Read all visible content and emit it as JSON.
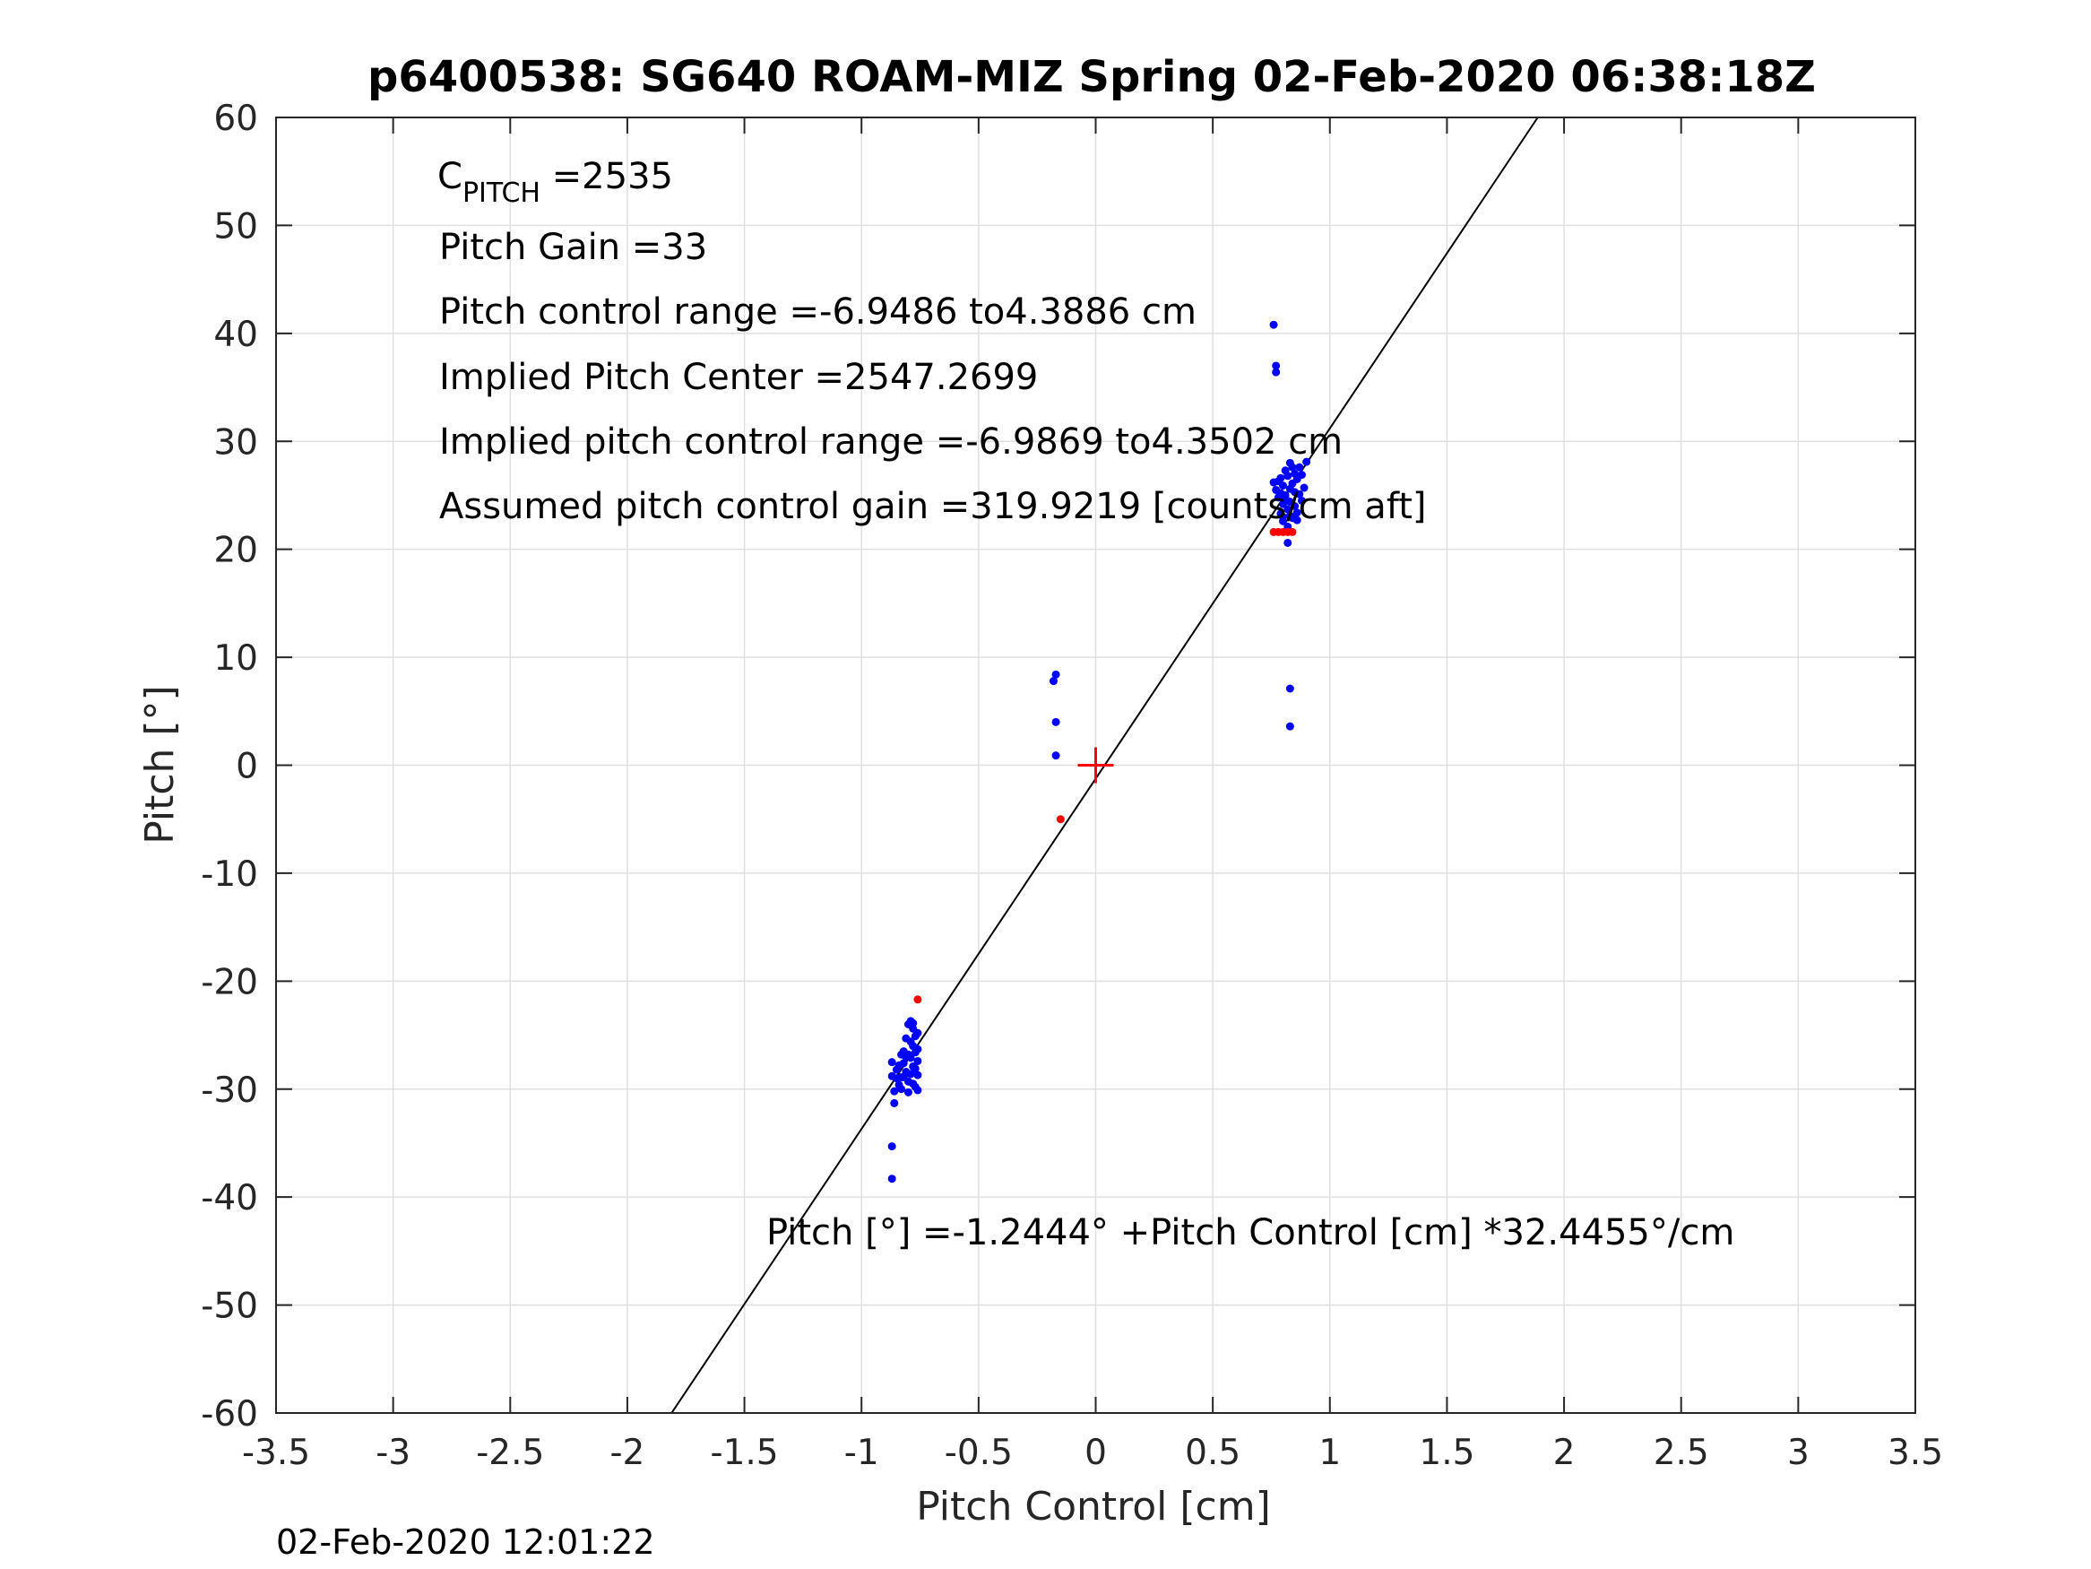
{
  "chart_data": {
    "type": "scatter",
    "title": "p6400538: SG640 ROAM-MIZ Spring 02-Feb-2020 06:38:18Z",
    "xlabel": "Pitch Control [cm]",
    "ylabel": "Pitch [°]",
    "xlim": [
      -3.5,
      3.5
    ],
    "ylim": [
      -60,
      60
    ],
    "xticks": [
      "-3.5",
      "-3",
      "-2.5",
      "-2",
      "-1.5",
      "-1",
      "-0.5",
      "0",
      "0.5",
      "1",
      "1.5",
      "2",
      "2.5",
      "3",
      "3.5"
    ],
    "yticks": [
      "-60",
      "-50",
      "-40",
      "-30",
      "-20",
      "-10",
      "0",
      "10",
      "20",
      "30",
      "40",
      "50",
      "60"
    ],
    "grid": true,
    "fit_line": {
      "intercept": -1.2444,
      "slope": 32.4455
    },
    "center_marker": {
      "x": 0,
      "y": 0
    },
    "annotations": {
      "c_pitch_main": "C",
      "c_pitch_sub": "PITCH",
      "c_pitch_value": " =2535",
      "pitch_gain": "Pitch Gain =33",
      "pitch_control_range": "Pitch control range =-6.9486 to4.3886 cm",
      "implied_center": "Implied Pitch Center =2547.2699",
      "implied_range": "Implied pitch control range =-6.9869 to4.3502 cm",
      "assumed_gain": "Assumed pitch control gain =319.9219 [counts/cm aft]",
      "fit_equation": "Pitch [°] =-1.2444° +Pitch Control [cm] *32.4455°/cm"
    },
    "series": [
      {
        "color": "#0000ff",
        "points": [
          [
            0.76,
            40.8
          ],
          [
            0.77,
            37.0
          ],
          [
            0.77,
            36.4
          ],
          [
            0.76,
            26.2
          ],
          [
            0.77,
            25.5
          ],
          [
            0.78,
            24.8
          ],
          [
            0.79,
            26.6
          ],
          [
            0.8,
            25.9
          ],
          [
            0.8,
            24.2
          ],
          [
            0.81,
            27.3
          ],
          [
            0.81,
            25.0
          ],
          [
            0.82,
            26.8
          ],
          [
            0.82,
            23.7
          ],
          [
            0.83,
            25.6
          ],
          [
            0.83,
            24.4
          ],
          [
            0.84,
            26.1
          ],
          [
            0.84,
            22.9
          ],
          [
            0.85,
            25.3
          ],
          [
            0.85,
            24.0
          ],
          [
            0.86,
            26.5
          ],
          [
            0.86,
            23.4
          ],
          [
            0.87,
            25.1
          ],
          [
            0.88,
            24.5
          ],
          [
            0.88,
            26.9
          ],
          [
            0.89,
            25.7
          ],
          [
            0.79,
            23.3
          ],
          [
            0.8,
            22.6
          ],
          [
            0.82,
            22.1
          ],
          [
            0.83,
            28.0
          ],
          [
            0.87,
            27.6
          ],
          [
            0.78,
            26.3
          ],
          [
            0.84,
            27.6
          ],
          [
            0.8,
            23.0
          ],
          [
            0.86,
            22.7
          ],
          [
            0.82,
            20.6
          ],
          [
            0.9,
            28.1
          ],
          [
            0.81,
            24.7
          ],
          [
            0.83,
            23.1
          ],
          [
            0.85,
            27.0
          ],
          [
            0.79,
            25.2
          ],
          [
            0.83,
            7.1
          ],
          [
            0.83,
            3.6
          ],
          [
            -0.17,
            8.4
          ],
          [
            -0.18,
            7.8
          ],
          [
            -0.17,
            4.0
          ],
          [
            -0.17,
            0.9
          ],
          [
            -0.87,
            -27.5
          ],
          [
            -0.87,
            -28.8
          ],
          [
            -0.86,
            -30.2
          ],
          [
            -0.86,
            -31.3
          ],
          [
            -0.85,
            -29.0
          ],
          [
            -0.84,
            -27.8
          ],
          [
            -0.83,
            -28.9
          ],
          [
            -0.83,
            -30.0
          ],
          [
            -0.82,
            -26.5
          ],
          [
            -0.82,
            -27.6
          ],
          [
            -0.81,
            -28.4
          ],
          [
            -0.81,
            -25.3
          ],
          [
            -0.8,
            -24.0
          ],
          [
            -0.8,
            -26.8
          ],
          [
            -0.8,
            -29.3
          ],
          [
            -0.79,
            -23.7
          ],
          [
            -0.79,
            -25.6
          ],
          [
            -0.79,
            -27.1
          ],
          [
            -0.79,
            -28.6
          ],
          [
            -0.78,
            -24.4
          ],
          [
            -0.78,
            -26.0
          ],
          [
            -0.78,
            -27.9
          ],
          [
            -0.78,
            -29.5
          ],
          [
            -0.77,
            -25.1
          ],
          [
            -0.77,
            -26.6
          ],
          [
            -0.77,
            -28.1
          ],
          [
            -0.77,
            -29.8
          ],
          [
            -0.76,
            -24.8
          ],
          [
            -0.76,
            -26.3
          ],
          [
            -0.76,
            -27.4
          ],
          [
            -0.76,
            -28.7
          ],
          [
            -0.76,
            -30.1
          ],
          [
            -0.84,
            -29.6
          ],
          [
            -0.85,
            -28.2
          ],
          [
            -0.8,
            -30.3
          ],
          [
            -0.82,
            -28.9
          ],
          [
            -0.81,
            -27.0
          ],
          [
            -0.78,
            -23.9
          ],
          [
            -0.83,
            -26.8
          ],
          [
            -0.87,
            -35.3
          ],
          [
            -0.87,
            -38.3
          ]
        ]
      },
      {
        "color": "#ff0000",
        "points": [
          [
            -0.76,
            -21.7
          ],
          [
            -0.15,
            -5.0
          ],
          [
            0.76,
            21.6
          ],
          [
            0.78,
            21.6
          ],
          [
            0.8,
            21.6
          ],
          [
            0.82,
            21.6
          ],
          [
            0.84,
            21.6
          ]
        ]
      }
    ]
  },
  "footer": {
    "timestamp": "02-Feb-2020 12:01:22"
  }
}
